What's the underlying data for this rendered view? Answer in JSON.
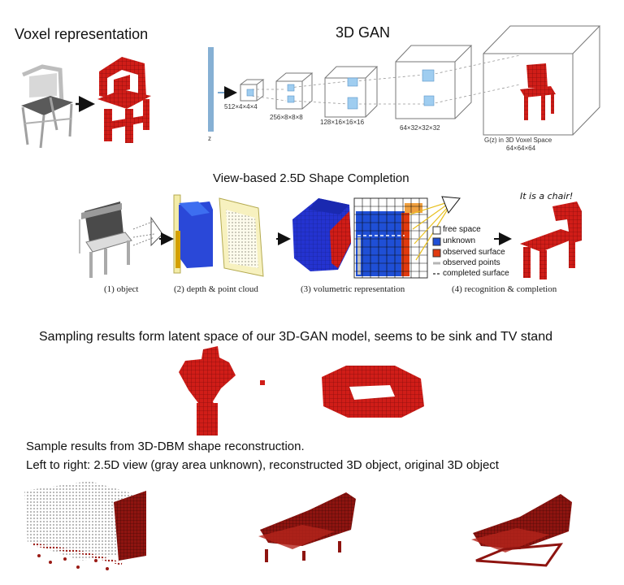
{
  "section_voxel": {
    "title": "Voxel representation"
  },
  "section_gan": {
    "title": "3D GAN",
    "z_label": "z",
    "layers": [
      "512×4×4×4",
      "256×8×8×8",
      "128×16×16×16",
      "64×32×32×32"
    ],
    "output_label_1": "G(z) in 3D Voxel Space",
    "output_label_2": "64×64×64"
  },
  "section_view": {
    "title": "View-based 2.5D Shape Completion",
    "steps": [
      "(1) object",
      "(2) depth & point cloud",
      "(3) volumetric representation",
      "(4) recognition & completion"
    ],
    "legend": [
      "free space",
      "unknown",
      "observed surface",
      "observed points",
      "completed surface"
    ],
    "callout": "It is a chair!"
  },
  "section_sampling": {
    "caption": "Sampling results form latent space of our 3D-GAN model, seems to be sink and TV stand"
  },
  "section_dbm": {
    "caption_1": "Sample results from 3D-DBM shape reconstruction.",
    "caption_2": "Left to right: 2.5D view (gray area unknown), reconstructed 3D object, original 3D object"
  },
  "colors": {
    "voxel_red": "#d11a16",
    "dark_red": "#8b0f0f",
    "z_bar": "#86b0d4",
    "cube_blue": "#8fc4ea",
    "grid_blue": "#1f4fd6",
    "yellow_plane": "#f5efb5"
  }
}
